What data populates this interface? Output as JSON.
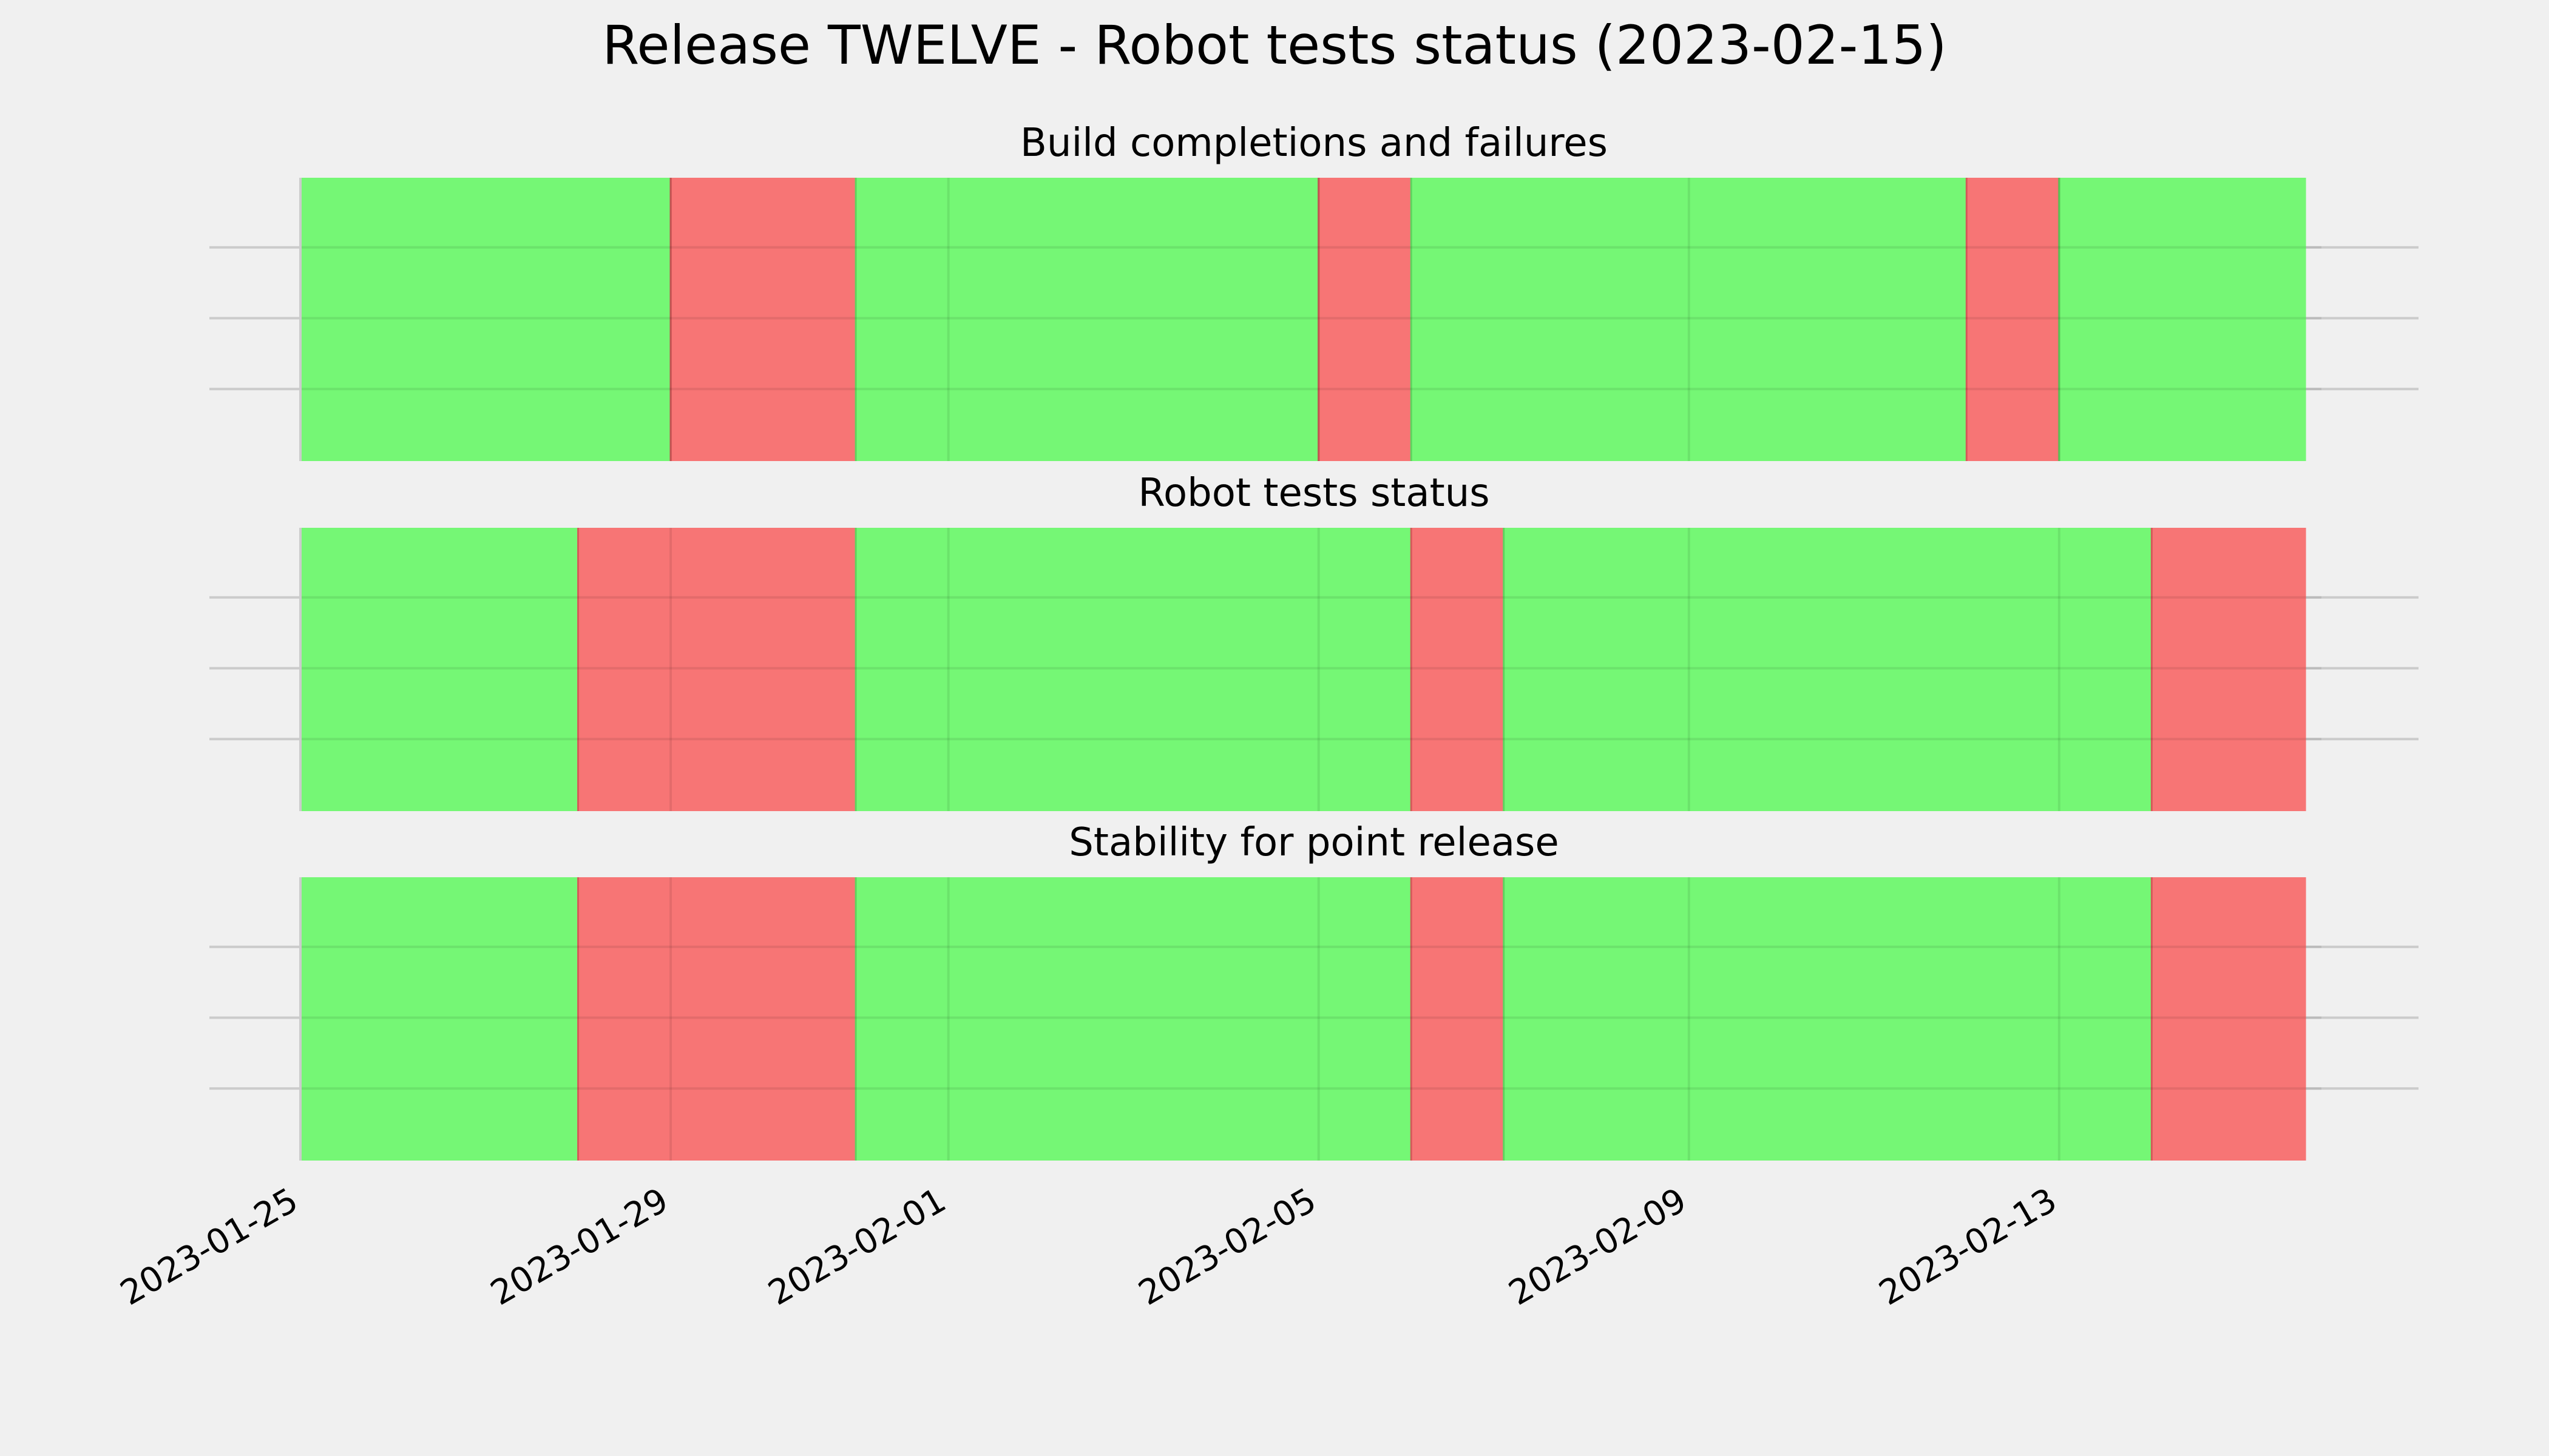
{
  "chart_data": {
    "type": "timeline",
    "title": "Release TWELVE - Robot tests status (2023-02-15)",
    "x_axis": {
      "type": "date",
      "range": [
        "2023-01-25",
        "2023-02-15T20:00:00"
      ],
      "tick_labels": [
        "2023-01-25",
        "2023-01-29",
        "2023-02-01",
        "2023-02-05",
        "2023-02-09",
        "2023-02-13"
      ],
      "tick_dates": [
        "2023-01-25",
        "2023-01-29",
        "2023-02-01",
        "2023-02-05",
        "2023-02-09",
        "2023-02-13"
      ]
    },
    "grid": true,
    "colors": {
      "pass": "#75f775",
      "fail": "#f77575",
      "background": "#f0f0f0",
      "grid": "#cbcbcb"
    },
    "panels": [
      {
        "title": "Build completions and failures",
        "segments": [
          {
            "start": "2023-01-25T00:00:00",
            "end": "2023-01-29T00:00:00",
            "status": "pass"
          },
          {
            "start": "2023-01-29T00:00:00",
            "end": "2023-01-31T00:00:00",
            "status": "fail"
          },
          {
            "start": "2023-01-31T00:00:00",
            "end": "2023-02-05T00:00:00",
            "status": "pass"
          },
          {
            "start": "2023-02-05T00:00:00",
            "end": "2023-02-06T00:00:00",
            "status": "fail"
          },
          {
            "start": "2023-02-06T00:00:00",
            "end": "2023-02-12T00:00:00",
            "status": "pass"
          },
          {
            "start": "2023-02-12T00:00:00",
            "end": "2023-02-13T00:00:00",
            "status": "fail"
          },
          {
            "start": "2023-02-13T00:00:00",
            "end": "2023-02-15T16:00:00",
            "status": "pass"
          }
        ]
      },
      {
        "title": "Robot tests status",
        "segments": [
          {
            "start": "2023-01-25T00:00:00",
            "end": "2023-01-28T00:00:00",
            "status": "pass"
          },
          {
            "start": "2023-01-28T00:00:00",
            "end": "2023-01-31T00:00:00",
            "status": "fail"
          },
          {
            "start": "2023-01-31T00:00:00",
            "end": "2023-02-06T00:00:00",
            "status": "pass"
          },
          {
            "start": "2023-02-06T00:00:00",
            "end": "2023-02-07T00:00:00",
            "status": "fail"
          },
          {
            "start": "2023-02-07T00:00:00",
            "end": "2023-02-14T00:00:00",
            "status": "pass"
          },
          {
            "start": "2023-02-14T00:00:00",
            "end": "2023-02-15T16:00:00",
            "status": "fail"
          }
        ]
      },
      {
        "title": "Stability for point release",
        "segments": [
          {
            "start": "2023-01-25T00:00:00",
            "end": "2023-01-28T00:00:00",
            "status": "pass"
          },
          {
            "start": "2023-01-28T00:00:00",
            "end": "2023-01-31T00:00:00",
            "status": "fail"
          },
          {
            "start": "2023-01-31T00:00:00",
            "end": "2023-02-06T00:00:00",
            "status": "pass"
          },
          {
            "start": "2023-02-06T00:00:00",
            "end": "2023-02-07T00:00:00",
            "status": "fail"
          },
          {
            "start": "2023-02-07T00:00:00",
            "end": "2023-02-14T00:00:00",
            "status": "pass"
          },
          {
            "start": "2023-02-14T00:00:00",
            "end": "2023-02-15T16:00:00",
            "status": "fail"
          }
        ]
      }
    ]
  }
}
